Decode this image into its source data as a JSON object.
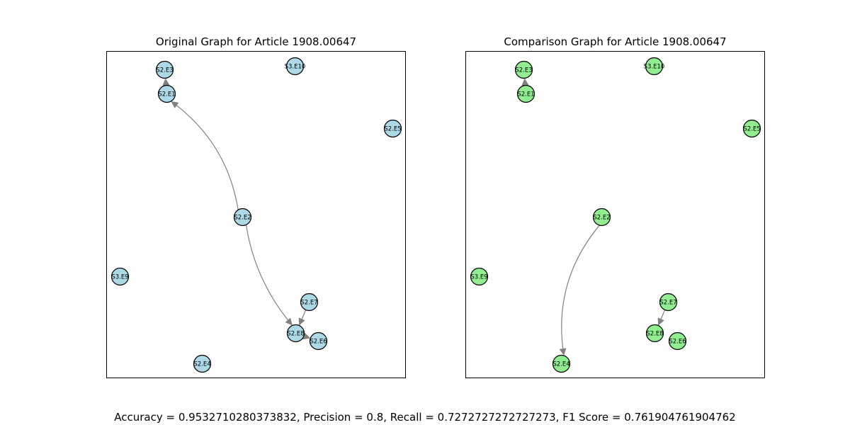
{
  "panels": [
    {
      "title": "Original Graph for Article 1908.00647",
      "node_color": "#add8e6",
      "nodes": [
        "S2.E3",
        "S3.E10",
        "S2.E1",
        "S2.E5",
        "S2.E2",
        "S3.E9",
        "S2.E7",
        "S2.E8",
        "S2.E6",
        "S2.E4"
      ],
      "edges": [
        {
          "from": "S2.E1",
          "to": "S2.E3"
        },
        {
          "from": "S2.E2",
          "to": "S2.E1"
        },
        {
          "from": "S2.E2",
          "to": "S2.E8"
        },
        {
          "from": "S2.E7",
          "to": "S2.E8"
        },
        {
          "from": "S2.E8",
          "to": "S2.E6"
        }
      ]
    },
    {
      "title": "Comparison Graph for Article 1908.00647",
      "node_color": "#90ee90",
      "nodes": [
        "S2.E3",
        "S3.E10",
        "S2.E1",
        "S2.E5",
        "S2.E2",
        "S3.E9",
        "S2.E7",
        "S2.E8",
        "S2.E6",
        "S2.E4"
      ],
      "edges": [
        {
          "from": "S2.E1",
          "to": "S2.E3"
        },
        {
          "from": "S2.E2",
          "to": "S2.E4"
        },
        {
          "from": "S2.E7",
          "to": "S2.E8"
        }
      ]
    }
  ],
  "edge_color": "#808080",
  "metrics_text": "Accuracy = 0.9532710280373832, Precision = 0.8, Recall = 0.7272727272727273, F1 Score = 0.761904761904762"
}
